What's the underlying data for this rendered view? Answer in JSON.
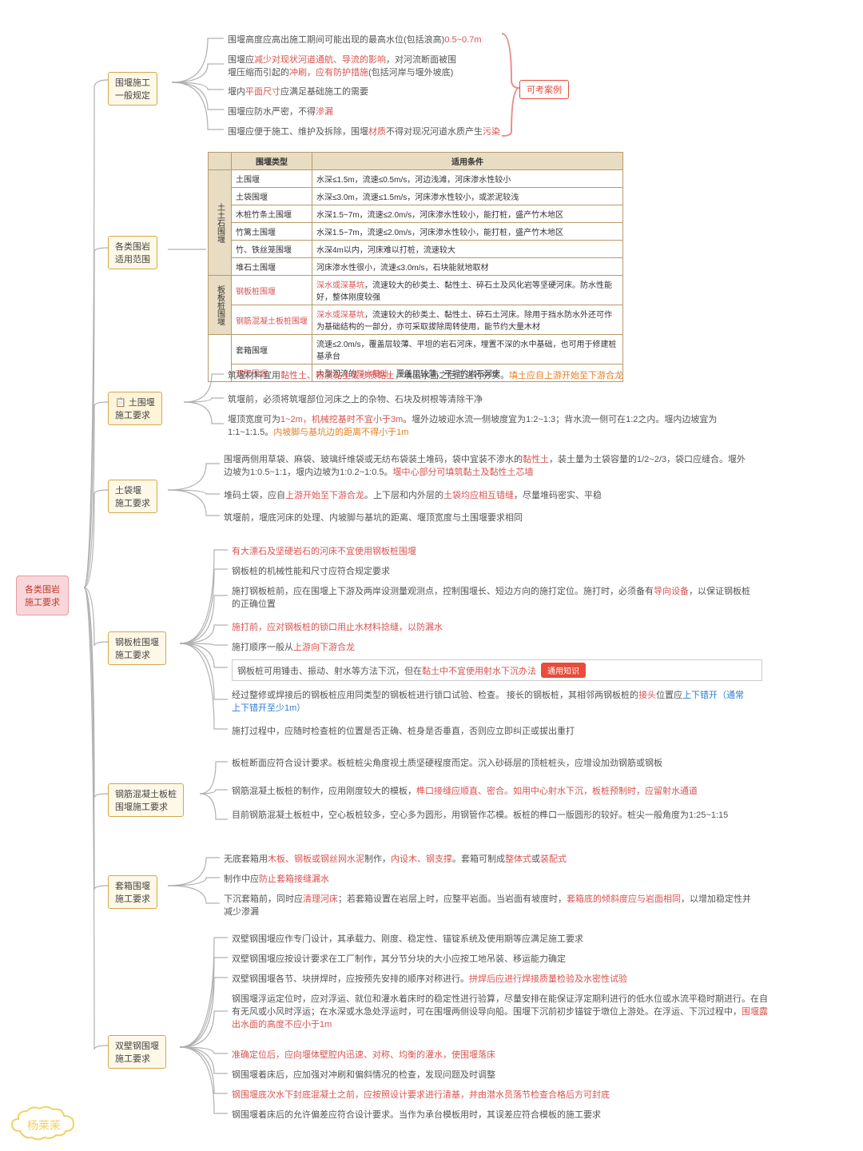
{
  "root": {
    "label": "各类围岩\n施工要求"
  },
  "cloud": "杨莱茉",
  "red_tag": "可考案例",
  "b1": {
    "title": "围堰施工\n一般规定",
    "items": [
      {
        "t": "围堰高度应高出施工期间可能出现的最高水位(包括浪高)",
        "hl": "0.5~0.7m"
      },
      {
        "t": "围堰应",
        "r1": "减少对现状河道通航、导流的影响",
        "t2": "，对河流断面被围\n堰压缩而引起的",
        "r2": "冲刷，应有防护措施",
        "t3": "(包括河岸与堰外坡底)"
      },
      {
        "t": "堰内",
        "r": "平面尺寸",
        "t2": "应满足基础施工的需要"
      },
      {
        "t": "围堰应防水严密，不得",
        "r": "滲漏"
      },
      {
        "t": "围堰应便于施工、维护及拆除，围堰",
        "r": "材质",
        "t2": "不得对现况河道水质产生",
        "r2": "污染"
      }
    ]
  },
  "b2": {
    "title": "各类围岩\n适用范围",
    "table": {
      "headers": [
        "",
        "围堰类型",
        "适用条件"
      ],
      "groups": [
        {
          "g": "土土石围堰",
          "rows": [
            [
              "土围堰",
              "水深≤1.5m，流速≤0.5m/s，河边浅滩，河床渗水性较小"
            ],
            [
              "土袋围堰",
              "水深≤3.0m，流速≤1.5m/s，河床渗水性较小，或淤泥较浅"
            ],
            [
              "木桩竹条土围堰",
              "水深1.5~7m，流速≤2.0m/s，河床渗水性较小，能打桩，盛产竹木地区"
            ],
            [
              "竹篱土围堰",
              "水深1.5~7m，流速≤2.0m/s，河床渗水性较小，能打桩，盛产竹木地区"
            ],
            [
              "竹、铁丝笼围堰",
              "水深4m以内，河床难以打桩，流速较大"
            ],
            [
              "堆石土围堰",
              "河床渗水性很小，流速≤3.0m/s，石块能就地取材"
            ]
          ]
        },
        {
          "g": "板板桩围堰",
          "rows": [
            [
              "钢板桩围堰",
              "深水或深基坑，流速较大的砂类土、黏性土、碎石土及风化岩等坚硬河床。防水性能好，整体刚度较强"
            ],
            [
              "钢筋混凝土板桩围堰",
              "深水或深基坑，流速较大的砂类土、黏性土、碎石土河床。除用于挡水防水外还可作为基础结构的一部分，亦可采取拔除周转使用，能节约大量木材"
            ]
          ]
        },
        {
          "g": "",
          "rows": [
            [
              "套箱围堰",
              "流速≤2.0m/s，覆盖层较薄、平坦的岩石河床，埋置不深的水中基础，也可用于修建桩基承台"
            ],
            [
              "双壁围堰",
              "大型河流的深水基础，覆盖层较薄、平坦的岩石河床"
            ]
          ]
        }
      ]
    }
  },
  "b3": {
    "title": "土围堰\n施工要求",
    "icon": "📋",
    "items": [
      "筑堰材料宜用<span class=red>黏性土、粉质黏土或砂质黏土</span>，填出水面之后应进行夯实。<span class=orange>填土应自上游开始至下游合龙</span>",
      "筑堰前，必须将筑堰部位河床之上的杂物、石块及树根等清除干净",
      "堰顶宽度可为<span class=red>1~2m，机械挖基时不宜小于3m</span>。堰外边坡迎水流一侧坡度宜为1:2~1:3；背水流一侧可在1:2之内。堰内边坡宜为1:1~1:1.5。<span class=orange>内坡脚与基坑边的距离不得小于1m</span>"
    ]
  },
  "b4": {
    "title": "土袋堰\n施工要求",
    "items": [
      "围堰两侧用草袋、麻袋、玻璃纤维袋或无纺布袋装土堆码，袋中宜装不渗水的<span class=red>黏性土</span>，装土量为土袋容量的1/2~2/3，袋口应缝合。堰外边坡为1:0.5~1:1，堰内边坡为1:0.2~1:0.5。<span class=red>堰中心部分可填筑黏土及黏性土芯墙</span>",
      "堆码土袋，应自<span class=red>上游开始至下游合龙</span>。上下层和内外层的<span class=red>土袋均应相互错缝</span>，尽量堆码密实、平稳",
      "筑堰前，堰底河床的处理、内坡脚与基坑的距离、堰顶宽度与土围堰要求相同"
    ]
  },
  "b5": {
    "title": "钢板桩围堰\n施工要求",
    "items": [
      "<span class=red>有大漂石及坚硬岩石的河床不宜使用钢板桩围堰</span>",
      "钢板桩的机械性能和尺寸应符合规定要求",
      "施打钢板桩前，应在围堰上下游及两岸设测量观测点，控制围堰长、短边方向的施打定位。施打时，必须备有<span class=red>导向设备</span>，以保证钢板桩的正确位置",
      "<span class=red>施打前，应对钢板桩的锁口用止水材料捻缝，以防漏水</span>",
      "施打顺序一般从<span class=red>上游向下游合龙</span>",
      "钢板桩可用锤击、振动、射水等方法下沉，但在<span class=red>黏土中不宜使用射水下沉办法</span><span class=pink-tag>通用知识</span>",
      "经过整修或焊接后的钢板桩应用同类型的钢板桩进行锁口试验、检查。\n接长的钢板桩，其相邻两钢板桩的<span class=red>接头</span>位置应<span class=blue>上下错开（通常上下错开至少1m）</span>",
      "施打过程中，应随时检查桩的位置是否正确、桩身是否垂直，否则应立即纠正或拔出重打"
    ]
  },
  "b6": {
    "title": "钢筋混凝土板桩\n围堰施工要求",
    "items": [
      "板桩断面应符合设计要求。板桩桩尖角度视土质坚硬程度而定。沉入砂砾层的顶桩桩头，应增设加劲钢筋或钢板",
      "钢筋混凝土板桩的制作，应用刚度较大的模板，<span class=red>榫口接缝应顺直、密合。如用中心射水下沉，板桩预制时，应留射水通道</span>",
      "目前钢筋混凝土板桩中，空心板桩较多，空心多为圆形，用钢管作芯模。板桩的榫口一版圆形的较好。桩尖一般角度为1:25~1:15"
    ]
  },
  "b7": {
    "title": "套箱围堰\n施工要求",
    "items": [
      "无底套箱用<span class=red>木板、钢板或钢丝网水泥</span>制作，<span class=red>内设木、钢支撑</span>。套箱可制成<span class=red>整体式</span>或<span class=red>装配式</span>",
      "制作中应<span class=red>防止套箱接缝漏水</span>",
      "下沉套箱前，同时应<span class=red>清理河床</span>；若套箱设置在岩层上时，应整平岩面。当岩面有坡度时，<span class=red>套箱底的倾斜度应与岩面相同</span>，以增加稳定性并减少渗漏"
    ]
  },
  "b8": {
    "title": "双壁钢围堰\n施工要求",
    "items": [
      "双壁钢围堰应作专门设计，其承载力、刚度、稳定性、锚锭系统及使用期等应满足施工要求",
      "双壁钢围堰应按设计要求在工厂制作，其分节分块的大小应按工地吊装、移运能力确定",
      "双壁钢围堰各节、块拼焊时，应按预先安排的顺序对称进行。<span class=red>拼焊后应进行焊接质量检验及水密性试验</span>",
      "钢围堰浮运定位时，应对浮运、就位和灌水着床时的稳定性进行验算，尽量安排在能保证浮定期利进行的低水位或水流平稳时期进行。在自有无风或小风时浮运；在水深或水急处浮运时，可在围堰两侧设导向船。围堰下沉前初步锚锭于墩位上游处。在浮运、下沉过程中，<span class=red>围堰露出水面的高度不应小于1m</span>",
      "<span class=red>准确定位后，应向堰体壁腔内迅速、对称、均衡的灌水，使围堰落床</span>",
      "钢围堰着床后，应加强对冲刷和偏斜情况的检查，发现问题及时调整",
      "<span class=red>钢围堰底次水下封底混凝土之前，应按照设计要求进行清基，并由潜水员落节检查合格后方可封底</span>",
      "钢围堰着床后的允许偏差应符合设计要求。当作为承台模板用时，其误差应符合模板的施工要求"
    ]
  }
}
